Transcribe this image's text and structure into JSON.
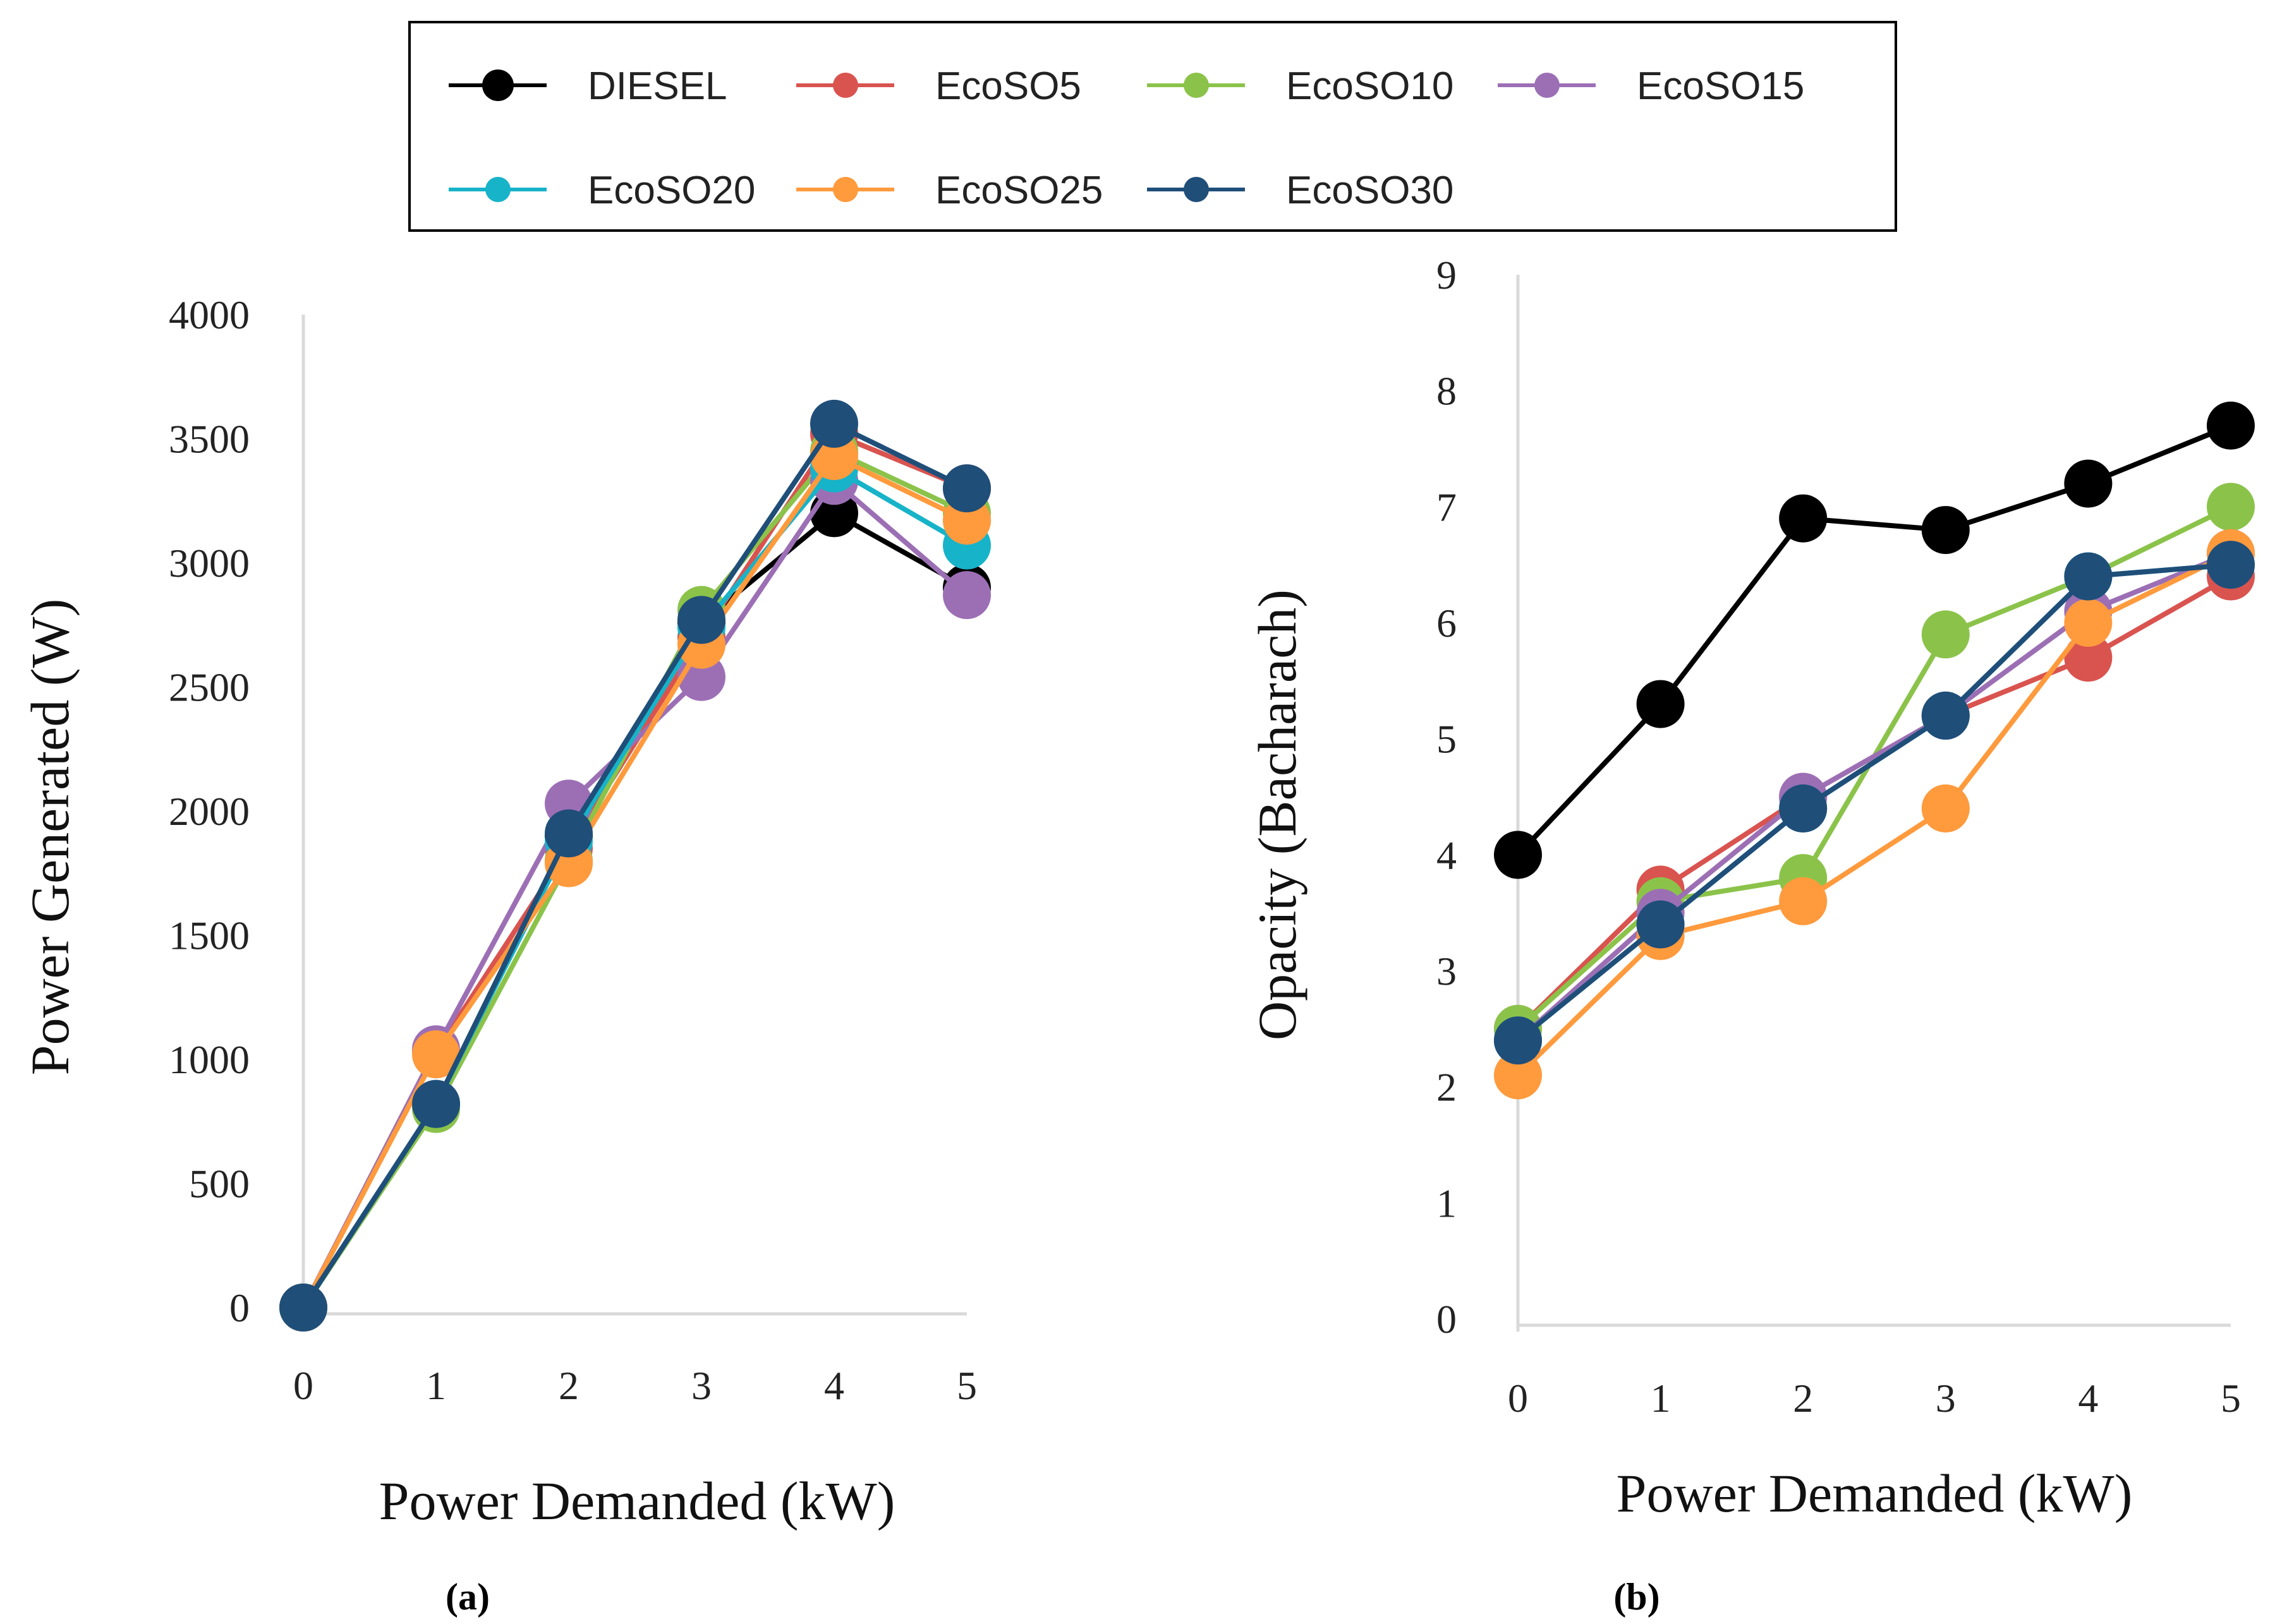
{
  "figure_labels": [
    "(a)",
    "(b)"
  ],
  "legend": {
    "entries": [
      {
        "name": "DIESEL",
        "color": "#000000"
      },
      {
        "name": "EcoSO5",
        "color": "#d9534f"
      },
      {
        "name": "EcoSO10",
        "color": "#8bc34a"
      },
      {
        "name": "EcoSO15",
        "color": "#9c6fb5"
      },
      {
        "name": "EcoSO20",
        "color": "#17b3c9"
      },
      {
        "name": "EcoSO25",
        "color": "#ff9a3d"
      },
      {
        "name": "EcoSO30",
        "color": "#1f4e79"
      }
    ]
  },
  "chart_data": [
    {
      "type": "line",
      "panel": "(a)",
      "xlabel": "Power Demanded (kW)",
      "ylabel": "Power Generated (W)",
      "x": [
        0,
        1,
        2,
        3,
        4,
        5
      ],
      "xlim": [
        0,
        5
      ],
      "ylim": [
        0,
        4000
      ],
      "xticks": [
        "0",
        "1",
        "2",
        "3",
        "4",
        "5"
      ],
      "yticks": [
        "0",
        "500",
        "1000",
        "1500",
        "2000",
        "2500",
        "3000",
        "3500",
        "4000"
      ],
      "series": [
        {
          "name": "DIESEL",
          "color": "#000000",
          "values": [
            0,
            820,
            1900,
            2760,
            3200,
            2900
          ]
        },
        {
          "name": "EcoSO5",
          "color": "#d9534f",
          "values": [
            0,
            1030,
            1850,
            2700,
            3520,
            3300
          ]
        },
        {
          "name": "EcoSO10",
          "color": "#8bc34a",
          "values": [
            0,
            800,
            1800,
            2810,
            3450,
            3200
          ]
        },
        {
          "name": "EcoSO15",
          "color": "#9c6fb5",
          "values": [
            0,
            1040,
            2030,
            2540,
            3330,
            2870
          ]
        },
        {
          "name": "EcoSO20",
          "color": "#17b3c9",
          "values": [
            0,
            820,
            1880,
            2740,
            3380,
            3070
          ]
        },
        {
          "name": "EcoSO25",
          "color": "#ff9a3d",
          "values": [
            0,
            1020,
            1790,
            2670,
            3430,
            3170
          ]
        },
        {
          "name": "EcoSO30",
          "color": "#1f4e79",
          "values": [
            0,
            820,
            1910,
            2770,
            3560,
            3300
          ]
        }
      ]
    },
    {
      "type": "line",
      "panel": "(b)",
      "xlabel": "Power Demanded (kW)",
      "ylabel": "Opacity (Bacharach)",
      "x": [
        0,
        1,
        2,
        3,
        4,
        5
      ],
      "xlim": [
        0,
        5
      ],
      "ylim": [
        0,
        9
      ],
      "xticks": [
        "0",
        "1",
        "2",
        "3",
        "4",
        "5"
      ],
      "yticks": [
        "0",
        "1",
        "2",
        "3",
        "4",
        "5",
        "6",
        "7",
        "8",
        "9"
      ],
      "series": [
        {
          "name": "DIESEL",
          "color": "#000000",
          "values": [
            4.0,
            5.3,
            6.9,
            6.8,
            7.2,
            7.7
          ]
        },
        {
          "name": "EcoSO5",
          "color": "#d9534f",
          "values": [
            2.5,
            3.7,
            4.5,
            5.2,
            5.7,
            6.4
          ]
        },
        {
          "name": "EcoSO10",
          "color": "#8bc34a",
          "values": [
            2.5,
            3.6,
            3.8,
            5.9,
            6.4,
            7.0
          ]
        },
        {
          "name": "EcoSO15",
          "color": "#9c6fb5",
          "values": [
            2.4,
            3.5,
            4.5,
            5.2,
            6.1,
            6.6
          ]
        },
        {
          "name": "EcoSO20",
          "color": "#17b3c9",
          "values": [
            2.4,
            3.4,
            4.4,
            5.2,
            6.4,
            6.5
          ]
        },
        {
          "name": "EcoSO25",
          "color": "#ff9a3d",
          "values": [
            2.1,
            3.3,
            3.6,
            4.4,
            6.0,
            6.6
          ]
        },
        {
          "name": "EcoSO30",
          "color": "#1f4e79",
          "values": [
            2.4,
            3.4,
            4.4,
            5.2,
            6.4,
            6.5
          ]
        }
      ]
    }
  ]
}
